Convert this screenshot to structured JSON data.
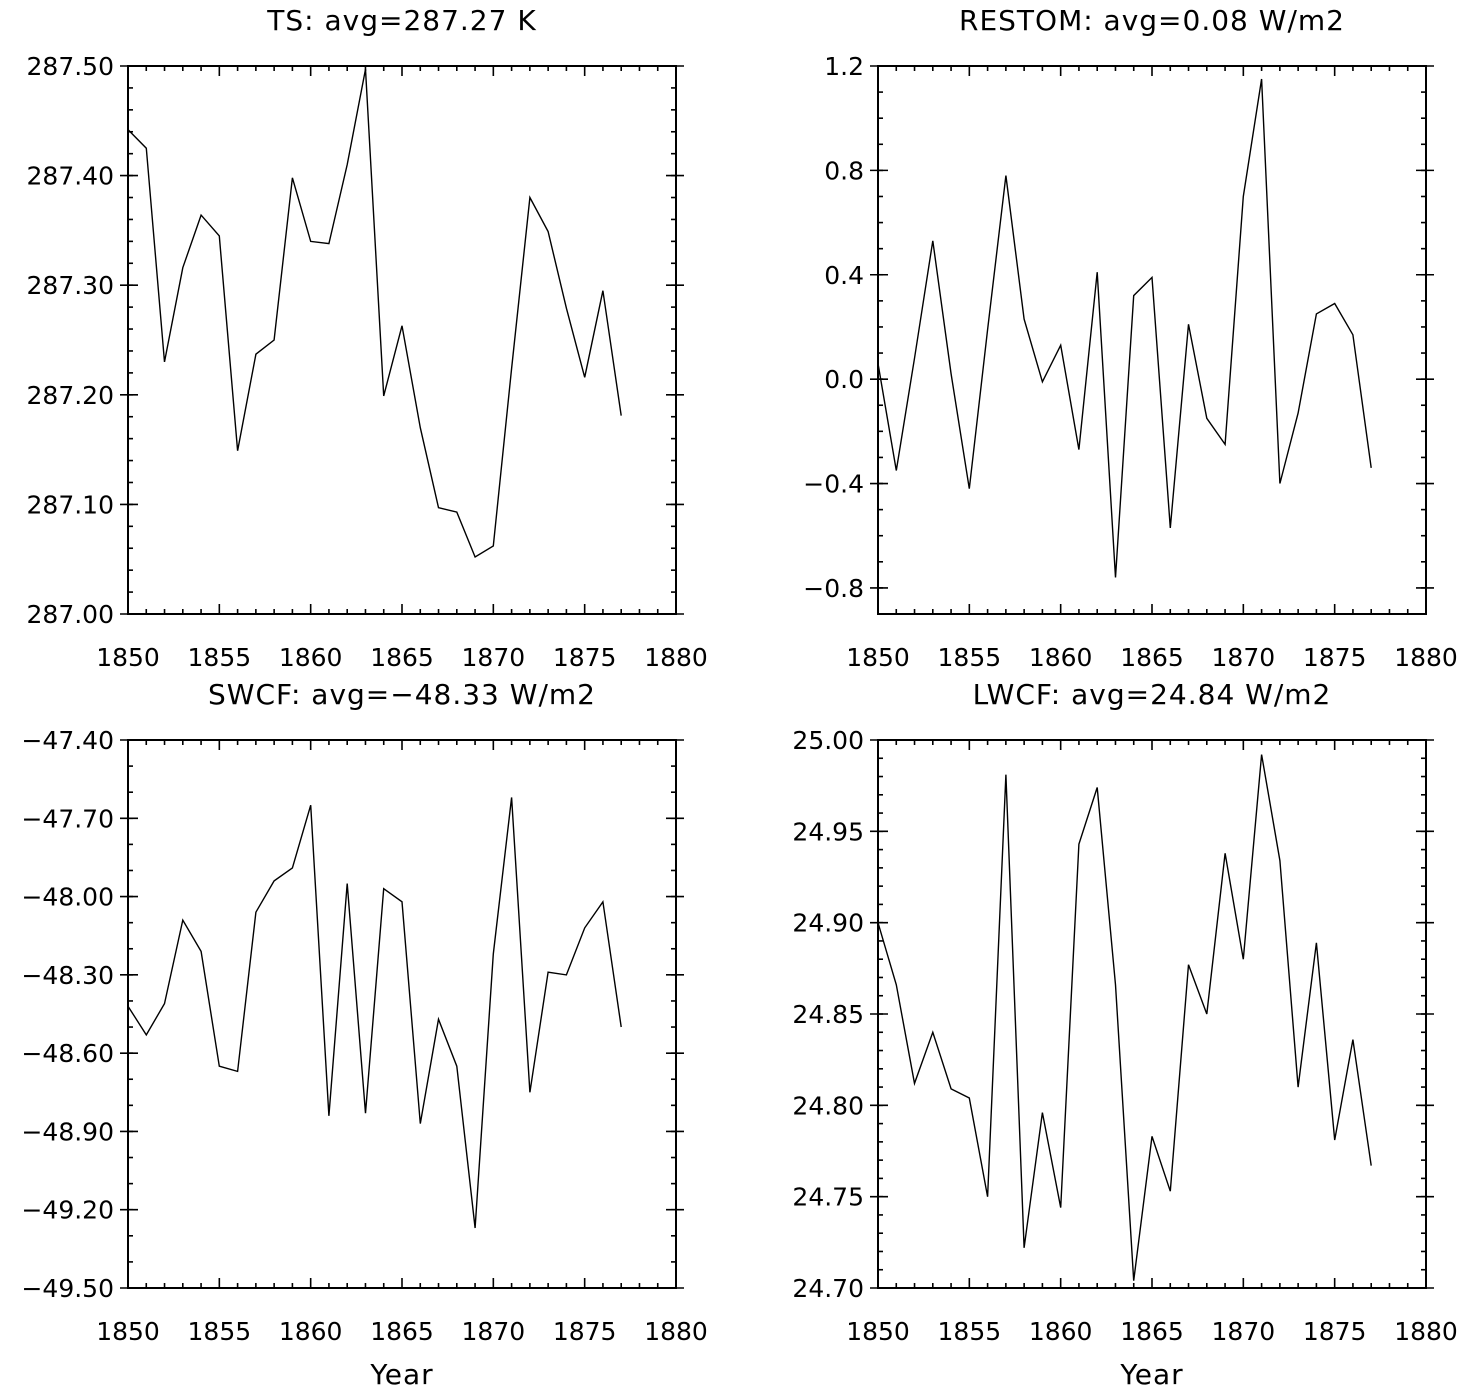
{
  "chart_data": [
    {
      "type": "line",
      "title": "TS: avg=287.27 K",
      "xlabel": "",
      "ylabel": "",
      "xlim": [
        1850,
        1880
      ],
      "ylim": [
        287.0,
        287.5
      ],
      "xticks": [
        1850,
        1855,
        1860,
        1865,
        1870,
        1875,
        1880
      ],
      "xtick_labels": [
        "1850",
        "1855",
        "1860",
        "1865",
        "1870",
        "1875",
        "1880"
      ],
      "yticks": [
        287.0,
        287.1,
        287.2,
        287.3,
        287.4,
        287.5
      ],
      "ytick_labels": [
        "287.00",
        "287.10",
        "287.20",
        "287.30",
        "287.40",
        "287.50"
      ],
      "yminor": 0.02,
      "grid": false,
      "x": [
        1850,
        1851,
        1852,
        1853,
        1854,
        1855,
        1856,
        1857,
        1858,
        1859,
        1860,
        1861,
        1862,
        1863,
        1864,
        1865,
        1866,
        1867,
        1868,
        1869,
        1870,
        1871,
        1872,
        1873,
        1874,
        1875,
        1876,
        1877
      ],
      "values": [
        287.442,
        287.425,
        287.23,
        287.316,
        287.364,
        287.345,
        287.149,
        287.237,
        287.25,
        287.398,
        287.34,
        287.338,
        287.41,
        287.497,
        287.199,
        287.263,
        287.17,
        287.097,
        287.093,
        287.052,
        287.062,
        287.224,
        287.38,
        287.349,
        287.279,
        287.216,
        287.295,
        287.181
      ]
    },
    {
      "type": "line",
      "title": "RESTOM: avg=0.08 W/m2",
      "xlabel": "",
      "ylabel": "",
      "xlim": [
        1850,
        1880
      ],
      "ylim": [
        -0.9,
        1.2
      ],
      "xticks": [
        1850,
        1855,
        1860,
        1865,
        1870,
        1875,
        1880
      ],
      "xtick_labels": [
        "1850",
        "1855",
        "1860",
        "1865",
        "1870",
        "1875",
        "1880"
      ],
      "yticks": [
        -0.8,
        -0.4,
        0.0,
        0.4,
        0.8,
        1.2
      ],
      "ytick_labels": [
        "−0.8",
        "−0.4",
        "0.0",
        "0.4",
        "0.8",
        "1.2"
      ],
      "yminor": 0.1,
      "grid": false,
      "x": [
        1850,
        1851,
        1852,
        1853,
        1854,
        1855,
        1856,
        1857,
        1858,
        1859,
        1860,
        1861,
        1862,
        1863,
        1864,
        1865,
        1866,
        1867,
        1868,
        1869,
        1870,
        1871,
        1872,
        1873,
        1874,
        1875,
        1876,
        1877
      ],
      "values": [
        0.06,
        -0.35,
        0.08,
        0.53,
        0.02,
        -0.42,
        0.19,
        0.78,
        0.23,
        -0.01,
        0.13,
        -0.27,
        0.41,
        -0.76,
        0.32,
        0.39,
        -0.57,
        0.21,
        -0.15,
        -0.25,
        0.7,
        1.15,
        -0.4,
        -0.13,
        0.25,
        0.29,
        0.17,
        -0.34
      ]
    },
    {
      "type": "line",
      "title": "SWCF: avg=−48.33 W/m2",
      "xlabel": "Year",
      "ylabel": "",
      "xlim": [
        1850,
        1880
      ],
      "ylim": [
        -49.5,
        -47.4
      ],
      "xticks": [
        1850,
        1855,
        1860,
        1865,
        1870,
        1875,
        1880
      ],
      "xtick_labels": [
        "1850",
        "1855",
        "1860",
        "1865",
        "1870",
        "1875",
        "1880"
      ],
      "yticks": [
        -49.5,
        -49.2,
        -48.9,
        -48.6,
        -48.3,
        -48.0,
        -47.7,
        -47.4
      ],
      "ytick_labels": [
        "−49.50",
        "−49.20",
        "−48.90",
        "−48.60",
        "−48.30",
        "−48.00",
        "−47.70",
        "−47.40"
      ],
      "yminor": 0.1,
      "grid": false,
      "x": [
        1850,
        1851,
        1852,
        1853,
        1854,
        1855,
        1856,
        1857,
        1858,
        1859,
        1860,
        1861,
        1862,
        1863,
        1864,
        1865,
        1866,
        1867,
        1868,
        1869,
        1870,
        1871,
        1872,
        1873,
        1874,
        1875,
        1876,
        1877
      ],
      "values": [
        -48.42,
        -48.53,
        -48.41,
        -48.09,
        -48.21,
        -48.65,
        -48.67,
        -48.06,
        -47.94,
        -47.89,
        -47.65,
        -48.84,
        -47.95,
        -48.83,
        -47.97,
        -48.02,
        -48.87,
        -48.47,
        -48.65,
        -49.27,
        -48.22,
        -47.62,
        -48.75,
        -48.29,
        -48.3,
        -48.12,
        -48.02,
        -48.5
      ]
    },
    {
      "type": "line",
      "title": "LWCF: avg=24.84 W/m2",
      "xlabel": "Year",
      "ylabel": "",
      "xlim": [
        1850,
        1880
      ],
      "ylim": [
        24.7,
        25.0
      ],
      "xticks": [
        1850,
        1855,
        1860,
        1865,
        1870,
        1875,
        1880
      ],
      "xtick_labels": [
        "1850",
        "1855",
        "1860",
        "1865",
        "1870",
        "1875",
        "1880"
      ],
      "yticks": [
        24.7,
        24.75,
        24.8,
        24.85,
        24.9,
        24.95,
        25.0
      ],
      "ytick_labels": [
        "24.70",
        "24.75",
        "24.80",
        "24.85",
        "24.90",
        "24.95",
        "25.00"
      ],
      "yminor": 0.01,
      "grid": false,
      "x": [
        1850,
        1851,
        1852,
        1853,
        1854,
        1855,
        1856,
        1857,
        1858,
        1859,
        1860,
        1861,
        1862,
        1863,
        1864,
        1865,
        1866,
        1867,
        1868,
        1869,
        1870,
        1871,
        1872,
        1873,
        1874,
        1875,
        1876,
        1877
      ],
      "values": [
        24.9,
        24.866,
        24.812,
        24.84,
        24.809,
        24.804,
        24.75,
        24.981,
        24.722,
        24.796,
        24.744,
        24.943,
        24.974,
        24.866,
        24.704,
        24.783,
        24.753,
        24.877,
        24.85,
        24.938,
        24.88,
        24.992,
        24.934,
        24.81,
        24.889,
        24.781,
        24.836,
        24.767
      ]
    }
  ]
}
